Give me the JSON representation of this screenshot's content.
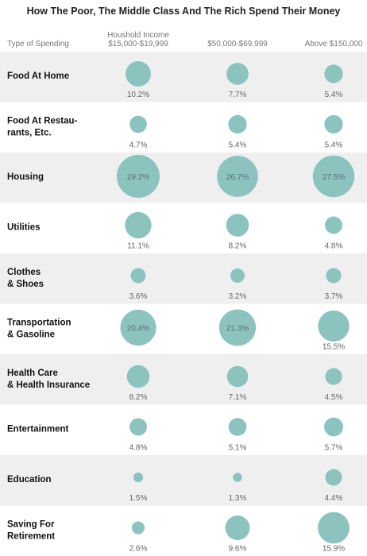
{
  "chart_data": {
    "type": "bubble-table",
    "title": "How The Poor, The Middle Class And The Rich Spend Their Money",
    "row_header": "Type of Spending",
    "columns": [
      [
        "Houshold Income",
        "$15,000-$19,999"
      ],
      [
        "$50,000-$69,999"
      ],
      [
        "Above $150,000"
      ]
    ],
    "unit": "%",
    "bubble_color": "#8cc3bf",
    "stripe_color": "#efefef",
    "rows": [
      {
        "name": [
          "Food At Home"
        ],
        "values": [
          10.2,
          7.7,
          5.4
        ],
        "labels": [
          "10.2%",
          "7.7%",
          "5.4%"
        ]
      },
      {
        "name": [
          "Food At Restau-",
          "rants, Etc."
        ],
        "values": [
          4.7,
          5.4,
          5.4
        ],
        "labels": [
          "4.7%",
          "5.4%",
          "5.4%"
        ]
      },
      {
        "name": [
          "Housing"
        ],
        "values": [
          29.2,
          26.7,
          27.5
        ],
        "labels": [
          "29.2%",
          "26.7%",
          "27.5%"
        ]
      },
      {
        "name": [
          "Utilities"
        ],
        "values": [
          11.1,
          8.2,
          4.8
        ],
        "labels": [
          "11.1%",
          "8.2%",
          "4.8%"
        ]
      },
      {
        "name": [
          "Clothes",
          "& Shoes"
        ],
        "values": [
          3.6,
          3.2,
          3.7
        ],
        "labels": [
          "3.6%",
          "3.2%",
          "3.7%"
        ]
      },
      {
        "name": [
          "Transportation",
          "& Gasoline"
        ],
        "values": [
          20.4,
          21.3,
          15.5
        ],
        "labels": [
          "20.4%",
          "21.3%",
          "15.5%"
        ]
      },
      {
        "name": [
          "Health Care",
          "& Health Insurance"
        ],
        "values": [
          8.2,
          7.1,
          4.5
        ],
        "labels": [
          "8.2%",
          "7.1%",
          "4.5%"
        ]
      },
      {
        "name": [
          "Entertainment"
        ],
        "values": [
          4.8,
          5.1,
          5.7
        ],
        "labels": [
          "4.8%",
          "5.1%",
          "5.7%"
        ]
      },
      {
        "name": [
          "Education"
        ],
        "values": [
          1.5,
          1.3,
          4.4
        ],
        "labels": [
          "1.5%",
          "1.3%",
          "4.4%"
        ]
      },
      {
        "name": [
          "Saving For",
          "Retirement"
        ],
        "values": [
          2.6,
          9.6,
          15.9
        ],
        "labels": [
          "2.6%",
          "9.6%",
          "15.9%"
        ]
      }
    ]
  }
}
